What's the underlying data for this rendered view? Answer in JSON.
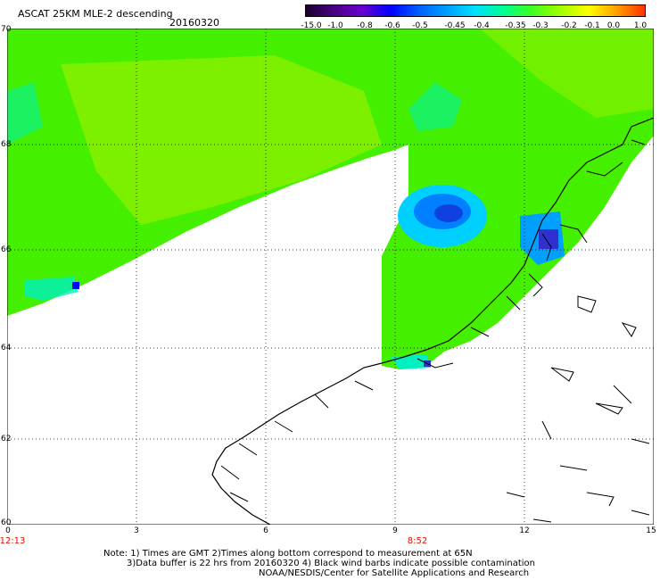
{
  "header": {
    "title": "ASCAT 25KM MLE-2 descending",
    "date": "20160320"
  },
  "colorbar": {
    "labels": [
      "-15.0",
      "-1.0",
      "-0.8",
      "-0.6",
      "-0.5",
      "-0.45",
      "-0.4",
      "-0.35",
      "-0.3",
      "-0.2",
      "-0.1",
      "0.0",
      "1.0"
    ],
    "colors": [
      "#1a0030",
      "#4b0082",
      "#6a00d0",
      "#0000ff",
      "#0060ff",
      "#00a0ff",
      "#00e0ff",
      "#00ff90",
      "#40ff20",
      "#a0ff00",
      "#ffff00",
      "#ffa000",
      "#ff3000"
    ]
  },
  "axes": {
    "lat_labels": [
      "70",
      "68",
      "66",
      "64",
      "62",
      "60"
    ],
    "lon_labels": [
      "0",
      "3",
      "6",
      "9",
      "12",
      "15"
    ],
    "time_labels": [
      "12:13",
      "8:52"
    ]
  },
  "notes": {
    "line1": "Note: 1) Times are GMT 2)Times along bottom correspond to measurement at 65N",
    "line2": "3)Data buffer is 22 hrs from 20160320 4) Black wind barbs indicate possible contamination",
    "line3": "NOAA/NESDIS/Center for Satellite Applications and Research"
  },
  "palette": {
    "swath_green": "#44f000",
    "swath_yellowgreen": "#90f000",
    "swath_cyan": "#00f0c0",
    "swath_blue": "#0080ff",
    "swath_darkblue": "#3030d0",
    "coastline": "#000000",
    "grid": "#000000",
    "time_red": "#e01000"
  }
}
